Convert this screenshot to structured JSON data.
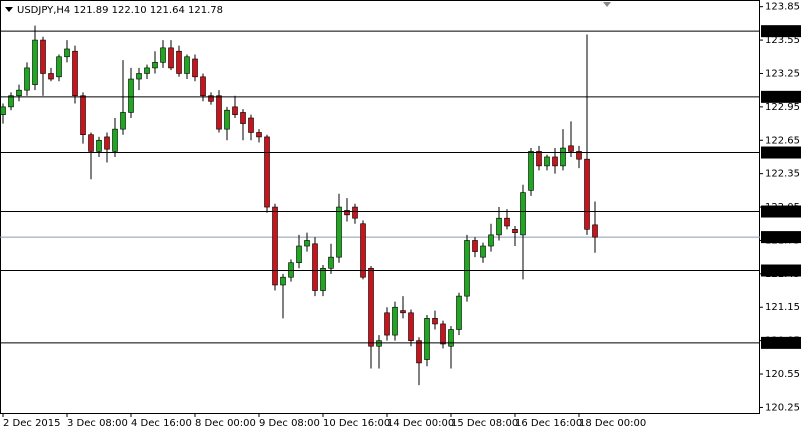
{
  "chart_data": {
    "type": "candlestick",
    "title": "USDJPY,H4  121.89 122.10 121.64 121.78",
    "x": [
      "2 Dec 2015",
      null,
      null,
      null,
      null,
      null,
      null,
      null,
      "3 Dec 08:00",
      null,
      null,
      null,
      null,
      null,
      null,
      null,
      "4 Dec 16:00",
      null,
      null,
      null,
      null,
      null,
      null,
      null,
      "8 Dec 00:00",
      null,
      null,
      null,
      null,
      null,
      null,
      null,
      "9 Dec 08:00",
      null,
      null,
      null,
      null,
      null,
      null,
      null,
      "10 Dec 16:00",
      null,
      null,
      null,
      null,
      null,
      null,
      null,
      "14 Dec 00:00",
      null,
      null,
      null,
      null,
      null,
      null,
      null,
      "15 Dec 08:00",
      null,
      null,
      null,
      null,
      null,
      null,
      null,
      "16 Dec 16:00",
      null,
      null,
      null,
      null,
      null,
      null,
      null,
      "18 Dec 00:00",
      null,
      null
    ],
    "series": {
      "open": [
        122.88,
        122.95,
        123.05,
        123.1,
        123.15,
        123.55,
        123.25,
        123.22,
        123.4,
        123.45,
        123.05,
        122.7,
        122.55,
        122.68,
        122.55,
        122.75,
        122.9,
        123.2,
        123.25,
        123.3,
        123.35,
        123.48,
        123.45,
        123.25,
        123.38,
        123.22,
        123.05,
        123.05,
        122.75,
        122.95,
        122.9,
        122.85,
        122.72,
        122.68,
        122.05,
        121.35,
        121.42,
        121.55,
        121.7,
        121.72,
        121.3,
        121.5,
        121.6,
        122.02,
        122.05,
        121.9,
        121.5,
        120.8,
        121.1,
        120.9,
        121.12,
        121.1,
        120.85,
        120.68,
        121.05,
        121.0,
        120.8,
        120.95,
        121.25,
        121.75,
        121.6,
        121.7,
        121.8,
        121.95,
        121.85,
        121.8,
        122.2,
        122.55,
        122.42,
        122.5,
        122.42,
        122.6,
        122.55,
        122.48,
        121.89
      ],
      "high": [
        122.98,
        123.08,
        123.15,
        123.35,
        123.68,
        123.58,
        123.3,
        123.42,
        123.55,
        123.5,
        123.08,
        122.72,
        122.68,
        122.72,
        122.85,
        123.37,
        123.3,
        123.3,
        123.33,
        123.45,
        123.55,
        123.55,
        123.5,
        123.42,
        123.42,
        123.25,
        123.08,
        123.1,
        122.95,
        123.05,
        122.93,
        122.88,
        122.75,
        122.7,
        122.08,
        121.45,
        121.58,
        121.8,
        121.82,
        121.78,
        121.53,
        121.72,
        122.17,
        122.13,
        122.08,
        121.93,
        121.52,
        120.9,
        121.15,
        121.2,
        121.25,
        121.13,
        120.88,
        121.08,
        121.12,
        121.03,
        120.98,
        121.28,
        121.8,
        121.78,
        121.73,
        121.9,
        122.05,
        122.03,
        121.88,
        122.25,
        122.58,
        122.6,
        122.52,
        122.58,
        122.75,
        122.82,
        122.6,
        123.6,
        122.1
      ],
      "low": [
        122.8,
        122.92,
        123.0,
        123.05,
        123.1,
        123.05,
        123.18,
        123.18,
        123.35,
        122.98,
        122.62,
        122.3,
        122.5,
        122.45,
        122.5,
        122.7,
        122.85,
        123.1,
        123.2,
        123.25,
        123.3,
        123.28,
        123.22,
        123.2,
        123.18,
        123.0,
        122.97,
        122.72,
        122.65,
        122.85,
        122.65,
        122.65,
        122.63,
        122.0,
        121.3,
        121.05,
        121.38,
        121.5,
        121.65,
        121.25,
        121.25,
        121.45,
        121.55,
        121.92,
        121.9,
        121.4,
        120.6,
        120.6,
        120.85,
        120.85,
        121.05,
        120.8,
        120.45,
        120.62,
        120.95,
        120.78,
        120.6,
        120.9,
        121.2,
        121.6,
        121.55,
        121.65,
        121.75,
        121.85,
        121.7,
        121.4,
        122.15,
        122.38,
        122.38,
        122.35,
        122.38,
        122.5,
        122.4,
        121.8,
        121.64
      ],
      "close": [
        122.95,
        123.05,
        123.1,
        123.3,
        123.55,
        123.25,
        123.2,
        123.4,
        123.47,
        123.05,
        122.7,
        122.55,
        122.65,
        122.57,
        122.75,
        122.9,
        123.2,
        123.25,
        123.3,
        123.35,
        123.48,
        123.3,
        123.25,
        123.4,
        123.22,
        123.05,
        123.0,
        122.75,
        122.92,
        122.88,
        122.8,
        122.72,
        122.68,
        122.05,
        121.35,
        121.42,
        121.55,
        121.7,
        121.75,
        121.3,
        121.5,
        121.6,
        122.05,
        121.98,
        121.95,
        121.42,
        120.8,
        120.85,
        120.9,
        121.15,
        121.1,
        120.85,
        120.65,
        121.05,
        121.0,
        120.82,
        120.95,
        121.25,
        121.75,
        121.65,
        121.7,
        121.8,
        121.95,
        121.88,
        121.82,
        122.18,
        122.55,
        122.42,
        122.5,
        122.42,
        122.58,
        122.55,
        122.48,
        121.85,
        121.78
      ]
    },
    "up_color": "#1fa81f",
    "down_color": "#c8141c",
    "ylim": [
      120.2,
      123.91
    ],
    "yticks": [
      123.85,
      123.55,
      123.25,
      122.95,
      122.65,
      122.35,
      122.05,
      121.75,
      121.45,
      121.15,
      120.85,
      120.55,
      120.25
    ],
    "levels": [
      123.63,
      123.04,
      122.54,
      122.01,
      121.48,
      120.83
    ],
    "last_price": 121.78
  }
}
